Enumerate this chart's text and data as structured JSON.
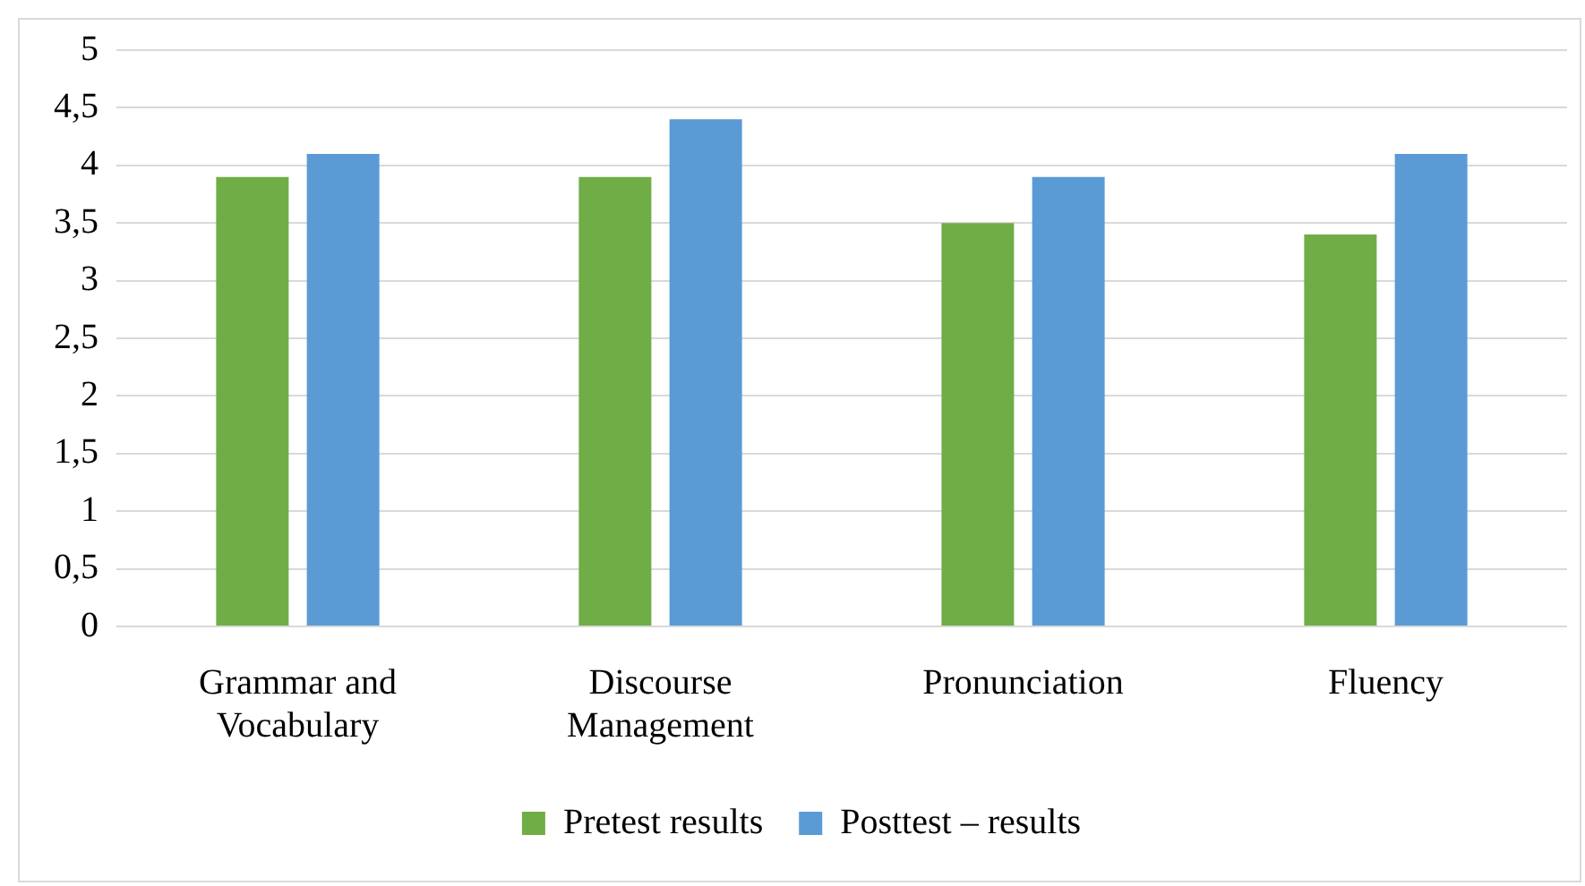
{
  "chart_data": {
    "type": "bar",
    "categories": [
      "Grammar and Vocabulary",
      "Discourse Management",
      "Pronunciation",
      "Fluency"
    ],
    "series": [
      {
        "name": "Pretest results",
        "color": "#70ad47",
        "values": [
          3.9,
          3.9,
          3.5,
          3.4
        ]
      },
      {
        "name": "Posttest – results",
        "color": "#5b9bd5",
        "values": [
          4.1,
          4.4,
          3.9,
          4.1
        ]
      }
    ],
    "ylim": [
      0,
      5
    ],
    "yticks": [
      0,
      {
        "value": 0.5,
        "label": "0,5"
      },
      1,
      {
        "value": 1.5,
        "label": "1,5"
      },
      2,
      {
        "value": 2.5,
        "label": "2,5"
      },
      3,
      {
        "value": 3.5,
        "label": "3,5"
      },
      4,
      {
        "value": 4.5,
        "label": "4,5"
      },
      5
    ],
    "grid": "y",
    "legend": "bottom"
  }
}
